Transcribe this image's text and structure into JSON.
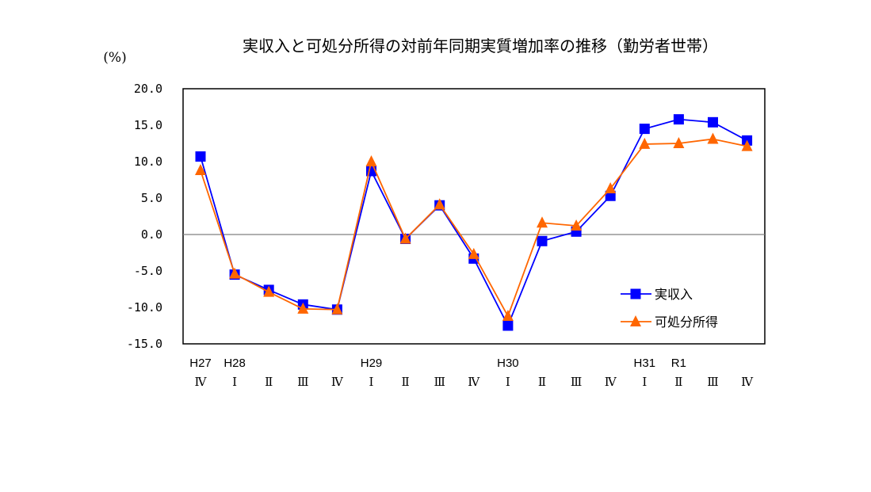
{
  "chart_data": {
    "type": "line",
    "title": "実収入と可処分所得の対前年同期実質増加率の推移（勤労者世帯）",
    "ylabel": "(%)",
    "ylim": [
      -15,
      20
    ],
    "yticks": [
      "20.0",
      "15.0",
      "10.0",
      "5.0",
      "0.0",
      "-5.0",
      "-10.0",
      "-15.0"
    ],
    "year_labels": [
      "H27",
      "H28",
      "",
      "",
      "",
      "H29",
      "",
      "",
      "",
      "H30",
      "",
      "",
      "",
      "H31",
      "R1",
      "",
      ""
    ],
    "quarter_labels": [
      "Ⅳ",
      "Ⅰ",
      "Ⅱ",
      "Ⅲ",
      "Ⅳ",
      "Ⅰ",
      "Ⅱ",
      "Ⅲ",
      "Ⅳ",
      "Ⅰ",
      "Ⅱ",
      "Ⅲ",
      "Ⅳ",
      "Ⅰ",
      "Ⅱ",
      "Ⅲ",
      "Ⅳ"
    ],
    "grid": false,
    "zero_line": true,
    "legend_position": "bottom-right",
    "series": [
      {
        "name": "実収入",
        "marker": "square",
        "color": "#0000ff",
        "values": [
          10.7,
          -5.5,
          -7.6,
          -9.6,
          -10.3,
          8.7,
          -0.6,
          4.0,
          -3.3,
          -12.5,
          -0.9,
          0.4,
          5.3,
          14.5,
          15.8,
          15.4,
          12.9
        ]
      },
      {
        "name": "可処分所得",
        "marker": "triangle",
        "color": "#ff6600",
        "values": [
          8.8,
          -5.4,
          -7.9,
          -10.2,
          -10.3,
          10.0,
          -0.6,
          4.1,
          -2.7,
          -11.2,
          1.6,
          1.2,
          6.3,
          12.4,
          12.5,
          13.1,
          12.1
        ]
      }
    ]
  }
}
